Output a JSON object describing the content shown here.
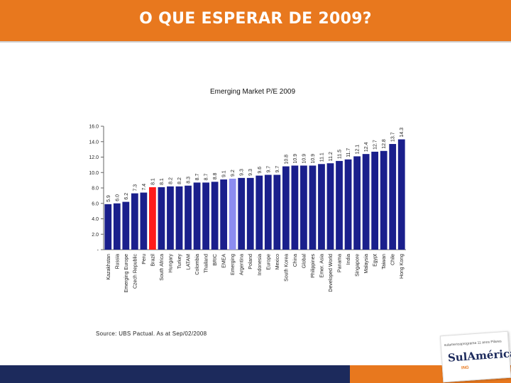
{
  "header": {
    "title": "O QUE ESPERAR DE 2009?"
  },
  "source": "Source: UBS Pactual. As at Sep/02/2008",
  "colors": {
    "bar": "#1a1f8c",
    "highlight_brazil": "#ff1a1a",
    "highlight_emerging": "#8c8cf0",
    "header": "#e8781e",
    "footer_navy": "#1c2a5c"
  },
  "logo": {
    "top": "sulamericaprograma 11 anos Pilares",
    "name": "SulAmérica",
    "bottom": "ING"
  },
  "chart_data": {
    "type": "bar",
    "title": "Emerging Market P/E 2009",
    "xlabel": "",
    "ylabel": "",
    "ylim": [
      0,
      16
    ],
    "yticks": [
      "-",
      "2.0",
      "4.0",
      "6.0",
      "8.0",
      "10.0",
      "12.0",
      "14.0",
      "16.0"
    ],
    "grid": false,
    "categories": [
      "Kazakhstan",
      "Russia",
      "Emerging Europe",
      "Czech Republic",
      "Peru",
      "Brazil",
      "South Africa",
      "Hungary",
      "Turkey",
      "LATAM",
      "Colombia",
      "Thailand",
      "BRIC",
      "EMEA",
      "Emerging",
      "Argentina",
      "Poland",
      "Indonesia",
      "Europe",
      "Mexico",
      "South Korea",
      "China",
      "Global",
      "Philippines",
      "Emer. Asia",
      "Developed World",
      "Panama",
      "India",
      "Singapore",
      "Malaysia",
      "Egypt",
      "Taiwan",
      "Chile",
      "Hong Kong"
    ],
    "values": [
      5.9,
      6.0,
      6.2,
      7.3,
      7.4,
      8.1,
      8.1,
      8.2,
      8.2,
      8.3,
      8.7,
      8.7,
      8.8,
      9.1,
      9.2,
      9.3,
      9.3,
      9.6,
      9.7,
      9.7,
      10.8,
      10.9,
      10.9,
      10.9,
      11.1,
      11.2,
      11.5,
      11.7,
      12.1,
      12.4,
      12.7,
      12.8,
      13.7,
      14.3
    ],
    "value_labels": [
      "5.9",
      "6.0",
      "6.2",
      "7.3",
      "7.4",
      "8.1",
      "8.1",
      "8.2",
      "8.2",
      "8.3",
      "8.7",
      "8.7",
      "8.8",
      "9.1",
      "9.2",
      "9.3",
      "9.3",
      "9.6",
      "9.7",
      "9.7",
      "10.8",
      "10.9",
      "10.9",
      "10.9",
      "11.1",
      "11.2",
      "11.5",
      "11.7",
      "12.1",
      "12.4",
      "12.7",
      "12.8",
      "13.7",
      "14.3"
    ],
    "highlights": {
      "Brazil": "#ff1a1a",
      "Emerging": "#8c8cf0"
    }
  }
}
